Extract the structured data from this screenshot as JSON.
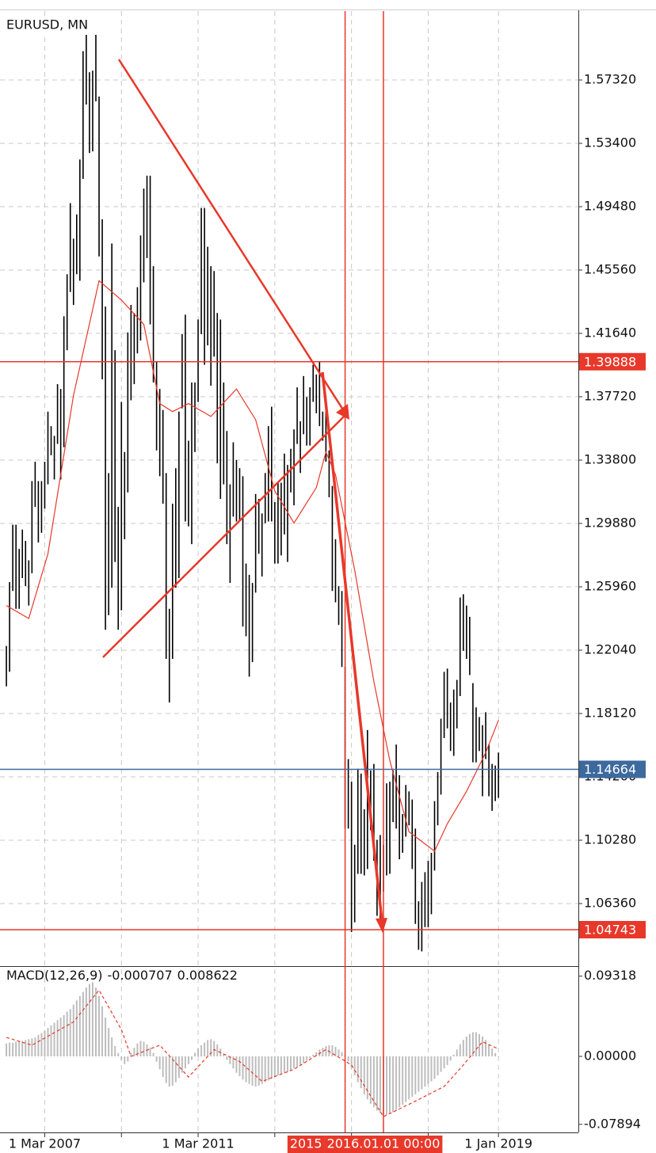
{
  "chart_data": [
    {
      "type": "ohlc",
      "title": "EURUSD, MN",
      "color": "#000000",
      "x": [
        "2006-03-01",
        "2006-04-01",
        "2006-05-01",
        "2006-06-01",
        "2006-07-01",
        "2006-08-01",
        "2006-09-01",
        "2006-10-01",
        "2006-11-01",
        "2006-12-01",
        "2007-01-01",
        "2007-02-01",
        "2007-03-01",
        "2007-04-01",
        "2007-05-01",
        "2007-06-01",
        "2007-07-01",
        "2007-08-01",
        "2007-09-01",
        "2007-10-01",
        "2007-11-01",
        "2007-12-01",
        "2008-01-01",
        "2008-02-01",
        "2008-03-01",
        "2008-04-01",
        "2008-05-01",
        "2008-06-01",
        "2008-07-01",
        "2008-08-01",
        "2008-09-01",
        "2008-10-01",
        "2008-11-01",
        "2008-12-01",
        "2009-01-01",
        "2009-02-01",
        "2009-03-01",
        "2009-04-01",
        "2009-05-01",
        "2009-06-01",
        "2009-07-01",
        "2009-08-01",
        "2009-09-01",
        "2009-10-01",
        "2009-11-01",
        "2009-12-01",
        "2010-01-01",
        "2010-02-01",
        "2010-03-01",
        "2010-04-01",
        "2010-05-01",
        "2010-06-01",
        "2010-07-01",
        "2010-08-01",
        "2010-09-01",
        "2010-10-01",
        "2010-11-01",
        "2010-12-01",
        "2011-01-01",
        "2011-02-01",
        "2011-03-01",
        "2011-04-01",
        "2011-05-01",
        "2011-06-01",
        "2011-07-01",
        "2011-08-01",
        "2011-09-01",
        "2011-10-01",
        "2011-11-01",
        "2011-12-01",
        "2012-01-01",
        "2012-02-01",
        "2012-03-01",
        "2012-04-01",
        "2012-05-01",
        "2012-06-01",
        "2012-07-01",
        "2012-08-01",
        "2012-09-01",
        "2012-10-01",
        "2012-11-01",
        "2012-12-01",
        "2013-01-01",
        "2013-02-01",
        "2013-03-01",
        "2013-04-01",
        "2013-05-01",
        "2013-06-01",
        "2013-07-01",
        "2013-08-01",
        "2013-09-01",
        "2013-10-01",
        "2013-11-01",
        "2013-12-01",
        "2014-01-01",
        "2014-02-01",
        "2014-03-01",
        "2014-04-01",
        "2014-05-01",
        "2014-06-01",
        "2014-07-01",
        "2014-08-01",
        "2014-09-01",
        "2014-10-01",
        "2014-11-01",
        "2014-12-01",
        "2015-01-01",
        "2015-02-01",
        "2015-03-01",
        "2015-04-01",
        "2015-05-01",
        "2015-06-01",
        "2015-07-01",
        "2015-08-01",
        "2015-09-01",
        "2015-10-01",
        "2015-11-01",
        "2015-12-01",
        "2016-01-01",
        "2016-02-01",
        "2016-03-01",
        "2016-04-01",
        "2016-05-01",
        "2016-06-01",
        "2016-07-01",
        "2016-08-01",
        "2016-09-01",
        "2016-10-01",
        "2016-11-01",
        "2016-12-01",
        "2017-01-01",
        "2017-02-01",
        "2017-03-01",
        "2017-04-01",
        "2017-05-01",
        "2017-06-01",
        "2017-07-01",
        "2017-08-01",
        "2017-09-01",
        "2017-10-01",
        "2017-11-01",
        "2017-12-01",
        "2018-01-01",
        "2018-02-01",
        "2018-03-01",
        "2018-04-01",
        "2018-05-01",
        "2018-06-01",
        "2018-07-01",
        "2018-08-01",
        "2018-09-01",
        "2018-10-01",
        "2018-11-01",
        "2018-12-01",
        "2019-01-01"
      ],
      "high": [
        1.223,
        1.2625,
        1.298,
        1.298,
        1.283,
        1.295,
        1.288,
        1.276,
        1.325,
        1.337,
        1.325,
        1.325,
        1.337,
        1.368,
        1.359,
        1.353,
        1.385,
        1.382,
        1.427,
        1.453,
        1.497,
        1.475,
        1.49,
        1.524,
        1.591,
        1.602,
        1.578,
        1.579,
        1.604,
        1.563,
        1.487,
        1.433,
        1.33,
        1.472,
        1.406,
        1.309,
        1.374,
        1.343,
        1.417,
        1.434,
        1.429,
        1.445,
        1.477,
        1.506,
        1.514,
        1.514,
        1.458,
        1.399,
        1.382,
        1.369,
        1.33,
        1.246,
        1.311,
        1.333,
        1.368,
        1.416,
        1.428,
        1.35,
        1.386,
        1.386,
        1.425,
        1.494,
        1.494,
        1.47,
        1.458,
        1.455,
        1.429,
        1.425,
        1.386,
        1.356,
        1.323,
        1.349,
        1.338,
        1.333,
        1.328,
        1.274,
        1.267,
        1.262,
        1.317,
        1.314,
        1.305,
        1.33,
        1.359,
        1.371,
        1.312,
        1.324,
        1.324,
        1.342,
        1.335,
        1.345,
        1.357,
        1.383,
        1.362,
        1.39,
        1.377,
        1.383,
        1.397,
        1.391,
        1.399,
        1.368,
        1.37,
        1.344,
        1.322,
        1.289,
        1.26,
        1.257,
        1.21,
        1.153,
        1.139,
        1.1,
        1.147,
        1.144,
        1.122,
        1.171,
        1.146,
        1.15,
        1.103,
        1.106,
        1.1,
        1.138,
        1.139,
        1.146,
        1.162,
        1.143,
        1.119,
        1.137,
        1.133,
        1.128,
        1.11,
        1.065,
        1.077,
        1.083,
        1.09,
        1.095,
        1.127,
        1.145,
        1.178,
        1.207,
        1.209,
        1.188,
        1.196,
        1.202,
        1.253,
        1.255,
        1.248,
        1.241,
        1.2,
        1.185,
        1.179,
        1.174,
        1.182,
        1.162,
        1.15,
        1.149,
        1.157
      ],
      "low": [
        1.198,
        1.207,
        1.257,
        1.246,
        1.246,
        1.265,
        1.26,
        1.248,
        1.268,
        1.309,
        1.287,
        1.293,
        1.308,
        1.323,
        1.341,
        1.326,
        1.348,
        1.326,
        1.346,
        1.406,
        1.442,
        1.434,
        1.453,
        1.449,
        1.512,
        1.558,
        1.528,
        1.529,
        1.56,
        1.464,
        1.388,
        1.233,
        1.242,
        1.259,
        1.275,
        1.233,
        1.245,
        1.289,
        1.318,
        1.375,
        1.385,
        1.404,
        1.412,
        1.448,
        1.463,
        1.422,
        1.386,
        1.344,
        1.328,
        1.311,
        1.215,
        1.188,
        1.215,
        1.259,
        1.265,
        1.37,
        1.3,
        1.297,
        1.286,
        1.343,
        1.374,
        1.416,
        1.397,
        1.409,
        1.384,
        1.402,
        1.336,
        1.314,
        1.323,
        1.286,
        1.262,
        1.303,
        1.3,
        1.3,
        1.235,
        1.229,
        1.204,
        1.213,
        1.256,
        1.28,
        1.266,
        1.299,
        1.3,
        1.3,
        1.274,
        1.274,
        1.279,
        1.292,
        1.275,
        1.318,
        1.31,
        1.348,
        1.33,
        1.354,
        1.347,
        1.347,
        1.374,
        1.367,
        1.359,
        1.35,
        1.337,
        1.315,
        1.257,
        1.25,
        1.236,
        1.21,
        1.11,
        1.11,
        1.046,
        1.052,
        1.082,
        1.082,
        1.081,
        1.085,
        1.109,
        1.09,
        1.056,
        1.052,
        1.071,
        1.081,
        1.082,
        1.114,
        1.11,
        1.091,
        1.095,
        1.105,
        1.112,
        1.085,
        1.051,
        1.035,
        1.034,
        1.049,
        1.049,
        1.057,
        1.084,
        1.112,
        1.131,
        1.166,
        1.172,
        1.158,
        1.155,
        1.172,
        1.192,
        1.22,
        1.215,
        1.205,
        1.151,
        1.151,
        1.158,
        1.13,
        1.153,
        1.13,
        1.121,
        1.127,
        1.129
      ],
      "ma": {
        "color": "#e8382a",
        "x": [
          "2006-03-01",
          "2006-10-01",
          "2007-04-01",
          "2007-12-01",
          "2008-08-01",
          "2009-03-01",
          "2009-10-01",
          "2010-03-01",
          "2010-07-01",
          "2010-12-01",
          "2011-07-01",
          "2012-03-01",
          "2012-09-01",
          "2013-03-01",
          "2013-09-01",
          "2014-04-01",
          "2014-07-01",
          "2014-10-01",
          "2015-04-01",
          "2015-10-01",
          "2016-03-01",
          "2016-09-01",
          "2017-05-01",
          "2017-09-01",
          "2018-03-01",
          "2018-09-01",
          "2019-01-01"
        ],
        "values": [
          1.248,
          1.24,
          1.28,
          1.378,
          1.449,
          1.437,
          1.422,
          1.373,
          1.368,
          1.373,
          1.365,
          1.382,
          1.363,
          1.319,
          1.299,
          1.321,
          1.343,
          1.329,
          1.27,
          1.201,
          1.152,
          1.108,
          1.096,
          1.113,
          1.133,
          1.157,
          1.177
        ]
      },
      "hlines": [
        {
          "value": 1.39888,
          "color": "#e8382a"
        },
        {
          "value": 1.04743,
          "color": "#e8382a"
        },
        {
          "value": 1.14664,
          "color": "#3d6a9e"
        }
      ],
      "vlines": [
        {
          "x": "2015-01-01",
          "label": "2015",
          "color": "#e8382a"
        },
        {
          "x": "2016-01-01",
          "label": "2016.01.01 00:00",
          "color": "#e8382a"
        }
      ],
      "xlim": [
        "2006-01-01",
        "2021-02-01"
      ],
      "xticks": [
        {
          "value": "2007-03-01",
          "label": "1 Mar 2007"
        },
        {
          "value": "2009-03-01"
        },
        {
          "value": "2011-03-01",
          "label": "1 Mar 2011"
        },
        {
          "value": "2013-03-01"
        },
        {
          "value": "2015-03-01"
        },
        {
          "value": "2017-03-01"
        },
        {
          "value": "2019-01-01",
          "label": "1 Jan 2019"
        }
      ],
      "ylim": [
        1.02489,
        1.61583
      ],
      "yticks": [
        {
          "value": 1.5732,
          "label": "1.57320"
        },
        {
          "value": 1.534,
          "label": "1.53400"
        },
        {
          "value": 1.4948,
          "label": "1.49480"
        },
        {
          "value": 1.4556,
          "label": "1.45560"
        },
        {
          "value": 1.4164,
          "label": "1.41640"
        },
        {
          "value": 1.3772,
          "label": "1.37720"
        },
        {
          "value": 1.338,
          "label": "1.33800"
        },
        {
          "value": 1.2988,
          "label": "1.29880"
        },
        {
          "value": 1.2596,
          "label": "1.25960"
        },
        {
          "value": 1.2204,
          "label": "1.22040"
        },
        {
          "value": 1.1812,
          "label": "1.18120"
        },
        {
          "value": 1.142,
          "label": "1.14200"
        },
        {
          "value": 1.1028,
          "label": "1.10280"
        },
        {
          "value": 1.0636,
          "label": "1.06360"
        }
      ],
      "grid": true
    },
    {
      "type": "macd",
      "name": "MACD(12,26,9)",
      "main_value": -0.000707,
      "signal_value": 0.008622,
      "histogram": {
        "color": "#bdbdbd",
        "values": [
          0.015,
          0.016,
          0.016,
          0.017,
          0.018,
          0.018,
          0.019,
          0.02,
          0.021,
          0.022,
          0.025,
          0.027,
          0.03,
          0.033,
          0.036,
          0.039,
          0.042,
          0.045,
          0.048,
          0.052,
          0.055,
          0.06,
          0.065,
          0.07,
          0.075,
          0.08,
          0.084,
          0.086,
          0.08,
          0.07,
          0.058,
          0.045,
          0.033,
          0.022,
          0.012,
          0.004,
          -0.004,
          -0.009,
          -0.006,
          0.004,
          0.01,
          0.015,
          0.018,
          0.017,
          0.014,
          0.01,
          0.004,
          -0.006,
          -0.015,
          -0.024,
          -0.031,
          -0.035,
          -0.034,
          -0.03,
          -0.025,
          -0.019,
          -0.014,
          -0.009,
          -0.004,
          0.004,
          0.009,
          0.013,
          0.016,
          0.019,
          0.02,
          0.018,
          0.014,
          0.009,
          0.003,
          -0.004,
          -0.009,
          -0.014,
          -0.019,
          -0.023,
          -0.027,
          -0.03,
          -0.032,
          -0.034,
          -0.035,
          -0.034,
          -0.032,
          -0.03,
          -0.028,
          -0.026,
          -0.024,
          -0.022,
          -0.02,
          -0.019,
          -0.018,
          -0.016,
          -0.014,
          -0.012,
          -0.01,
          -0.008,
          -0.005,
          -0.002,
          0.002,
          0.005,
          0.008,
          0.01,
          0.012,
          0.013,
          0.013,
          0.011,
          0.008,
          0.005,
          0.001,
          -0.006,
          -0.014,
          -0.022,
          -0.03,
          -0.037,
          -0.044,
          -0.05,
          -0.055,
          -0.059,
          -0.063,
          -0.066,
          -0.068,
          -0.068,
          -0.067,
          -0.065,
          -0.062,
          -0.059,
          -0.056,
          -0.053,
          -0.05,
          -0.047,
          -0.044,
          -0.041,
          -0.038,
          -0.035,
          -0.032,
          -0.029,
          -0.026,
          -0.022,
          -0.018,
          -0.014,
          -0.01,
          -0.005,
          0.002,
          0.008,
          0.014,
          0.019,
          0.023,
          0.026,
          0.028,
          0.028,
          0.026,
          0.023,
          0.019,
          0.014,
          0.009,
          0.004,
          -0.000707
        ]
      },
      "signal": {
        "color": "#e8382a",
        "x": [
          "2006-03-01",
          "2006-11-01",
          "2007-12-01",
          "2008-08-01",
          "2009-03-01",
          "2009-06-01",
          "2010-03-01",
          "2010-12-01",
          "2011-08-01",
          "2012-04-01",
          "2012-11-01",
          "2013-09-01",
          "2014-07-01",
          "2015-03-01",
          "2016-01-01",
          "2016-11-01",
          "2017-08-01",
          "2018-02-01",
          "2018-08-01",
          "2019-01-01"
        ],
        "values": [
          0.022,
          0.013,
          0.04,
          0.077,
          0.031,
          0.0,
          0.013,
          -0.024,
          0.008,
          -0.006,
          -0.029,
          -0.015,
          0.008,
          -0.01,
          -0.07,
          -0.052,
          -0.035,
          -0.01,
          0.017,
          0.008622
        ]
      },
      "ylim": [
        -0.0883,
        0.103
      ],
      "yticks": [
        0.09318,
        {
          "value": 0,
          "label": "0.00000"
        },
        -0.07894
      ]
    }
  ]
}
